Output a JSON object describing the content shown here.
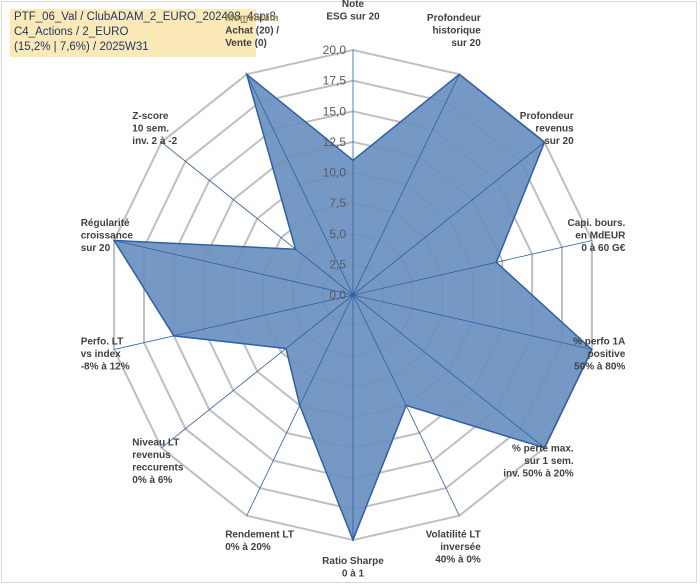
{
  "title": {
    "lines": [
      "PTF_06_Val / ClubADAM_2_EURO_202408_4spr8",
      "C4_Actions / 2_EURO",
      "(15,2% | 7,6%) / 2025W31"
    ]
  },
  "chart_data": {
    "type": "radar",
    "rlim": [
      0,
      20
    ],
    "ticks": [
      "0,0",
      "2,5",
      "5,0",
      "7,5",
      "10,0",
      "12,5",
      "15,0",
      "17,5",
      "20,0"
    ],
    "grid": true,
    "colors": {
      "fill": "#6a8fbf",
      "line": "#2e5fa6",
      "grid": "#bfbfbf",
      "highlight_label": "#9c8a4e"
    },
    "axes": [
      {
        "label": [
          "Note",
          "ESG sur 20"
        ],
        "value": 11
      },
      {
        "label": [
          "Profondeur",
          "historique",
          "sur 20"
        ],
        "value": 20
      },
      {
        "label": [
          "Profondeur",
          "revenus",
          "sur 20"
        ],
        "value": 20
      },
      {
        "label": [
          "Capi. bours.",
          "en MdEUR",
          "0 à 60 G€"
        ],
        "value": 12
      },
      {
        "label": [
          "% perfo 1A",
          "positive",
          "50% à 80%"
        ],
        "value": 20
      },
      {
        "label": [
          "% perte max.",
          "sur 1 sem.",
          "inv. 50% à 20%"
        ],
        "value": 20
      },
      {
        "label": [
          "Volatilité LT",
          "inversée",
          "40% à 0%"
        ],
        "value": 10
      },
      {
        "label": [
          "Ratio Sharpe",
          "0 à 1"
        ],
        "value": 20
      },
      {
        "label": [
          "Rendement LT",
          "0% à 20%"
        ],
        "value": 10
      },
      {
        "label": [
          "Niveau LT",
          "revenus",
          "reccurents",
          "0% à 6%"
        ],
        "value": 7
      },
      {
        "label": [
          "Perfo. LT",
          "vs index",
          "-8% à 12%"
        ],
        "value": 15
      },
      {
        "label": [
          "Régularité",
          "croissance",
          "sur 20"
        ],
        "value": 20
      },
      {
        "label": [
          "Z-score",
          "10 sem.",
          "inv. 2 à -2"
        ],
        "value": 6
      },
      {
        "label": [
          "Momentum",
          "Achat (20) /",
          "Vente (0)"
        ],
        "value": 20,
        "highlight_first_line": true
      }
    ]
  }
}
